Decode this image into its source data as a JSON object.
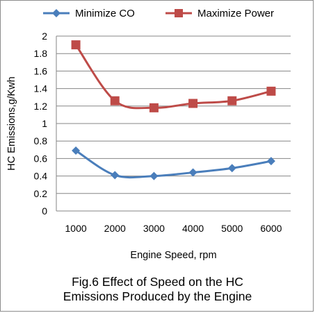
{
  "chart_data": {
    "type": "line",
    "title": "",
    "xlabel": "Engine Speed, rpm",
    "ylabel": "HC Emissions,g/Kwh",
    "categories": [
      "1000",
      "2000",
      "3000",
      "4000",
      "5000",
      "6000"
    ],
    "x": [
      1000,
      2000,
      3000,
      4000,
      5000,
      6000
    ],
    "ylim": [
      0,
      2
    ],
    "yticks": [
      0,
      0.2,
      0.4,
      0.6,
      0.8,
      1,
      1.2,
      1.4,
      1.6,
      1.8,
      2
    ],
    "ytick_labels": [
      "0",
      "0.2",
      "0.4",
      "0.6",
      "0.8",
      "1",
      "1.2",
      "1.4",
      "1.6",
      "1.8",
      "2"
    ],
    "grid": "horizontal",
    "legend_position": "top",
    "series": [
      {
        "name": "Minimize CO",
        "color": "#4a7ebb",
        "marker": "diamond",
        "values": [
          0.69,
          0.41,
          0.4,
          0.44,
          0.49,
          0.57
        ]
      },
      {
        "name": "Maximize Power",
        "color": "#be4b48",
        "marker": "square",
        "values": [
          1.9,
          1.26,
          1.18,
          1.23,
          1.26,
          1.37
        ]
      }
    ]
  },
  "caption": {
    "line1": "Fig.6 Effect of Speed on the HC",
    "line2": "Emissions Produced by the Engine"
  }
}
